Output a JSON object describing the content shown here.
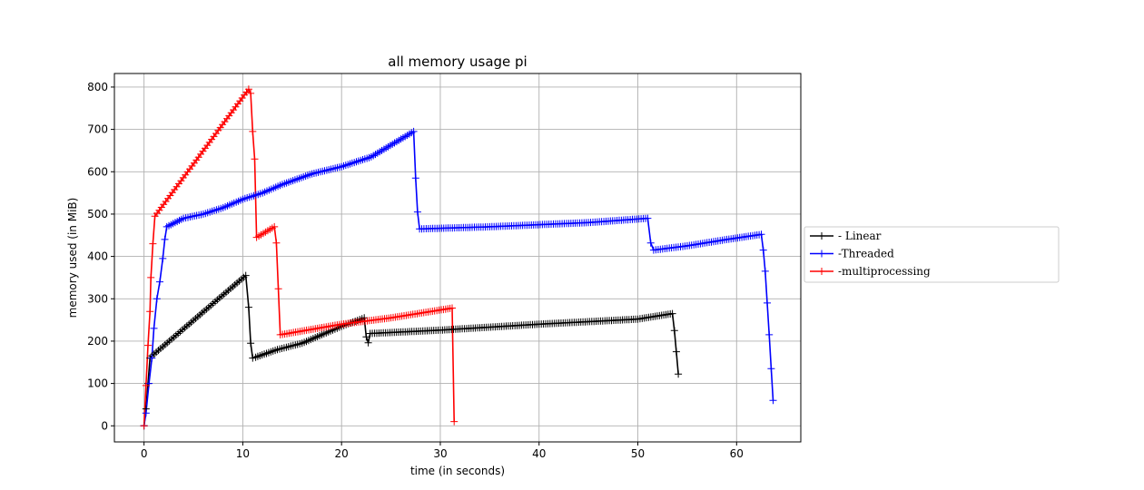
{
  "chart_data": {
    "type": "line",
    "title": "all memory usage pi",
    "xlabel": "time (in seconds)",
    "ylabel": "memory used (in MiB)",
    "xlim": [
      -3,
      66.5
    ],
    "ylim": [
      -38,
      832
    ],
    "xticks": [
      0,
      10,
      20,
      30,
      40,
      50,
      60
    ],
    "yticks": [
      0,
      100,
      200,
      300,
      400,
      500,
      600,
      700,
      800
    ],
    "grid": true,
    "legend_position": "outside-right",
    "marker": "+",
    "series": [
      {
        "name": "- Linear",
        "color": "#000000",
        "points": [
          [
            0,
            0
          ],
          [
            0.2,
            40
          ],
          [
            0.4,
            100
          ],
          [
            0.6,
            160
          ],
          [
            0.8,
            165
          ],
          [
            10.3,
            355
          ],
          [
            10.6,
            280
          ],
          [
            10.8,
            195
          ],
          [
            11.0,
            160
          ],
          [
            11.3,
            162
          ],
          [
            13.5,
            180
          ],
          [
            16,
            195
          ],
          [
            18,
            215
          ],
          [
            20,
            235
          ],
          [
            22.3,
            255
          ],
          [
            22.5,
            210
          ],
          [
            22.7,
            196
          ],
          [
            22.9,
            218
          ],
          [
            30,
            226
          ],
          [
            40,
            240
          ],
          [
            50,
            252
          ],
          [
            53.5,
            265
          ],
          [
            53.7,
            225
          ],
          [
            53.9,
            175
          ],
          [
            54.1,
            122
          ]
        ]
      },
      {
        "name": "-Threaded",
        "color": "#0000ff",
        "points": [
          [
            0,
            0
          ],
          [
            0.2,
            30
          ],
          [
            0.5,
            100
          ],
          [
            0.8,
            160
          ],
          [
            1.0,
            230
          ],
          [
            1.3,
            300
          ],
          [
            1.6,
            340
          ],
          [
            1.9,
            395
          ],
          [
            2.1,
            440
          ],
          [
            2.3,
            470
          ],
          [
            4,
            490
          ],
          [
            6,
            500
          ],
          [
            8,
            515
          ],
          [
            10,
            535
          ],
          [
            12,
            550
          ],
          [
            14,
            570
          ],
          [
            17,
            595
          ],
          [
            20,
            612
          ],
          [
            23,
            635
          ],
          [
            27.3,
            695
          ],
          [
            27.5,
            585
          ],
          [
            27.7,
            505
          ],
          [
            27.9,
            465
          ],
          [
            35,
            470
          ],
          [
            45,
            480
          ],
          [
            51,
            490
          ],
          [
            51.3,
            432
          ],
          [
            51.6,
            415
          ],
          [
            55,
            425
          ],
          [
            59,
            440
          ],
          [
            62.5,
            452
          ],
          [
            62.7,
            415
          ],
          [
            62.9,
            365
          ],
          [
            63.1,
            290
          ],
          [
            63.3,
            215
          ],
          [
            63.5,
            135
          ],
          [
            63.7,
            60
          ]
        ]
      },
      {
        "name": "-multiprocessing",
        "color": "#ff0000",
        "points": [
          [
            0,
            0
          ],
          [
            0.2,
            95
          ],
          [
            0.4,
            190
          ],
          [
            0.6,
            270
          ],
          [
            0.7,
            350
          ],
          [
            0.9,
            430
          ],
          [
            1.1,
            495
          ],
          [
            10.6,
            795
          ],
          [
            10.8,
            785
          ],
          [
            11.0,
            695
          ],
          [
            11.2,
            630
          ],
          [
            11.4,
            445
          ],
          [
            13.2,
            470
          ],
          [
            13.4,
            432
          ],
          [
            13.8,
            215
          ],
          [
            20,
            240
          ],
          [
            25,
            255
          ],
          [
            31.2,
            278
          ],
          [
            31.4,
            10
          ]
        ]
      }
    ]
  }
}
